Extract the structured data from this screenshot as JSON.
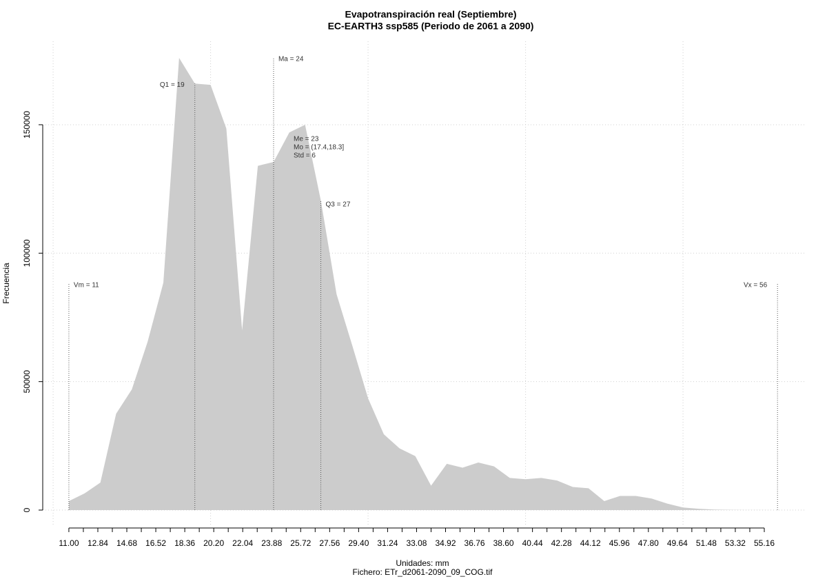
{
  "chart_data": {
    "type": "area",
    "title": "Evapotranspiración real (Septiembre)",
    "subtitle": "EC-EARTH3 ssp585 (Periodo de 2061 a 2090)",
    "xlabel": "Unidades: mm",
    "caption": "Fichero: ETr_d2061-2090_09_COG.tif",
    "ylabel": "Frecuencia",
    "x": [
      11,
      12,
      13,
      14,
      15,
      16,
      17,
      18,
      19,
      20,
      21,
      22,
      23,
      24,
      25,
      26,
      27,
      28,
      29,
      30,
      31,
      32,
      33,
      34,
      35,
      36,
      37,
      38,
      39,
      40,
      41,
      42,
      43,
      44,
      45,
      46,
      47,
      48,
      49,
      50,
      51,
      52,
      53,
      54,
      55,
      56
    ],
    "series": [
      {
        "color": "#cccccc",
        "values": [
          3500,
          6500,
          10700,
          37500,
          47000,
          65500,
          88500,
          176000,
          166000,
          165500,
          148500,
          70000,
          134000,
          135500,
          147000,
          150000,
          120500,
          84000,
          64000,
          43500,
          29500,
          24000,
          21000,
          9500,
          18000,
          16500,
          18500,
          17000,
          12500,
          12000,
          12500,
          11500,
          9000,
          8500,
          3500,
          5500,
          5500,
          4500,
          2500,
          1000,
          500,
          200,
          100,
          50,
          20,
          0
        ]
      }
    ],
    "xlim": [
      9.34,
      57.83
    ],
    "ylim": [
      -6170,
      182450
    ],
    "yticks": [
      0,
      50000,
      100000,
      150000
    ],
    "xticks": [
      {
        "value": 11,
        "label": "11.00"
      },
      {
        "value": 12.84,
        "label": "12.84"
      },
      {
        "value": 14.68,
        "label": "14.68"
      },
      {
        "value": 16.52,
        "label": "16.52"
      },
      {
        "value": 18.36,
        "label": "18.36"
      },
      {
        "value": 20.2,
        "label": "20.20"
      },
      {
        "value": 22.04,
        "label": "22.04"
      },
      {
        "value": 23.88,
        "label": "23.88"
      },
      {
        "value": 25.72,
        "label": "25.72"
      },
      {
        "value": 27.56,
        "label": "27.56"
      },
      {
        "value": 29.4,
        "label": "29.40"
      },
      {
        "value": 31.24,
        "label": "31.24"
      },
      {
        "value": 33.08,
        "label": "33.08"
      },
      {
        "value": 34.92,
        "label": "34.92"
      },
      {
        "value": 36.76,
        "label": "36.76"
      },
      {
        "value": 38.6,
        "label": "38.60"
      },
      {
        "value": 40.44,
        "label": "40.44"
      },
      {
        "value": 42.28,
        "label": "42.28"
      },
      {
        "value": 44.12,
        "label": "44.12"
      },
      {
        "value": 45.96,
        "label": "45.96"
      },
      {
        "value": 47.8,
        "label": "47.80"
      },
      {
        "value": 49.64,
        "label": "49.64"
      },
      {
        "value": 51.48,
        "label": "51.48"
      },
      {
        "value": 53.32,
        "label": "53.32"
      },
      {
        "value": 55.16,
        "label": "55.16"
      }
    ],
    "xminorticks": [
      11.92,
      13.76,
      15.6,
      17.44,
      19.28,
      21.12,
      22.96,
      24.8,
      26.64,
      28.48,
      30.32,
      32.16,
      34,
      35.84,
      37.68,
      39.52,
      41.36,
      43.2,
      45.04,
      46.88,
      48.72,
      50.56,
      52.4,
      54.24
    ],
    "xgrid": [
      10,
      20,
      30,
      40,
      50
    ],
    "grid": true,
    "markers": [
      {
        "label": "Vm = 11",
        "x": 11,
        "y": 88000
      },
      {
        "label": "Q1 = 19",
        "x": 19,
        "y": 166000
      },
      {
        "label": "Ma = 24",
        "x": 24,
        "y": 176000
      },
      {
        "label": "Q3 = 27",
        "x": 27,
        "y": 120500
      },
      {
        "label": "Vx = 56",
        "x": 56,
        "y": 88000
      }
    ],
    "notes": [
      "Me = 23",
      "Mo = (17.4,18.3]",
      "Std = 6"
    ]
  }
}
